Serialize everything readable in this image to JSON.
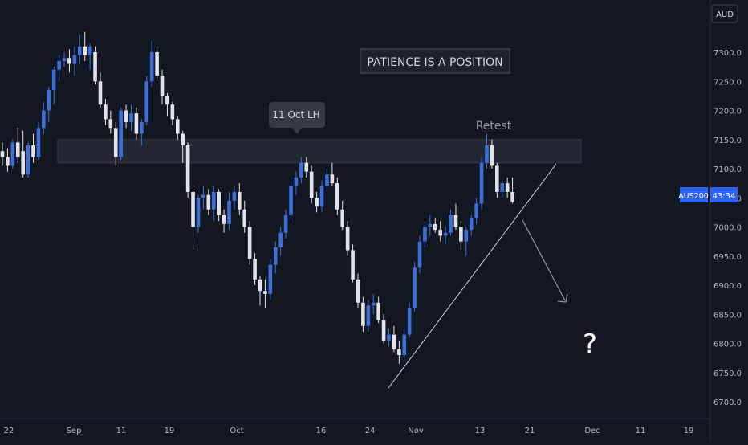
{
  "chart_data": {
    "type": "candlestick",
    "symbol": "AUS200",
    "countdown": "43:34",
    "currency": "AUD",
    "title_box": "PATIENCE IS A POSITION",
    "callout": "11 Oct LH",
    "retest_label": "Retest",
    "question_mark": "?",
    "last_price": 7043,
    "resistance_zone": [
      7110,
      7150
    ],
    "ylim": [
      6680,
      7345
    ],
    "y_ticks": [
      "7300.0",
      "7250.0",
      "7200.0",
      "7150.0",
      "7100.0",
      "7050.0",
      "7000.0",
      "6950.0",
      "6900.0",
      "6850.0",
      "6800.0",
      "6750.0",
      "6700.0"
    ],
    "y_tick_values": [
      7300,
      7250,
      7200,
      7150,
      7100,
      7050,
      7000,
      6950,
      6900,
      6850,
      6800,
      6750,
      6700
    ],
    "x_ticks": [
      "22",
      "Sep",
      "11",
      "19",
      "Oct",
      "16",
      "24",
      "Nov",
      "13",
      "21",
      "Dec",
      "11",
      "19"
    ],
    "candles": [
      [
        7130,
        7145,
        7105,
        7120
      ],
      [
        7120,
        7135,
        7095,
        7105
      ],
      [
        7105,
        7150,
        7100,
        7145
      ],
      [
        7145,
        7170,
        7110,
        7120
      ],
      [
        7130,
        7165,
        7085,
        7090
      ],
      [
        7090,
        7145,
        7085,
        7140
      ],
      [
        7140,
        7160,
        7110,
        7120
      ],
      [
        7120,
        7180,
        7115,
        7170
      ],
      [
        7170,
        7215,
        7160,
        7200
      ],
      [
        7200,
        7240,
        7180,
        7235
      ],
      [
        7235,
        7275,
        7210,
        7270
      ],
      [
        7270,
        7295,
        7250,
        7285
      ],
      [
        7285,
        7300,
        7275,
        7290
      ],
      [
        7290,
        7305,
        7265,
        7280
      ],
      [
        7280,
        7310,
        7260,
        7295
      ],
      [
        7295,
        7330,
        7280,
        7310
      ],
      [
        7310,
        7335,
        7285,
        7295
      ],
      [
        7295,
        7315,
        7270,
        7310
      ],
      [
        7300,
        7310,
        7245,
        7250
      ],
      [
        7250,
        7265,
        7205,
        7210
      ],
      [
        7210,
        7220,
        7175,
        7185
      ],
      [
        7185,
        7200,
        7160,
        7170
      ],
      [
        7170,
        7180,
        7105,
        7120
      ],
      [
        7120,
        7205,
        7115,
        7200
      ],
      [
        7200,
        7210,
        7170,
        7180
      ],
      [
        7180,
        7210,
        7165,
        7195
      ],
      [
        7195,
        7205,
        7150,
        7160
      ],
      [
        7160,
        7185,
        7140,
        7180
      ],
      [
        7180,
        7260,
        7175,
        7250
      ],
      [
        7250,
        7320,
        7240,
        7300
      ],
      [
        7300,
        7310,
        7250,
        7260
      ],
      [
        7260,
        7270,
        7210,
        7225
      ],
      [
        7225,
        7230,
        7190,
        7210
      ],
      [
        7210,
        7215,
        7175,
        7185
      ],
      [
        7185,
        7190,
        7150,
        7160
      ],
      [
        7160,
        7165,
        7110,
        7140
      ],
      [
        7140,
        7145,
        7050,
        7060
      ],
      [
        7060,
        7070,
        6960,
        7000
      ],
      [
        7000,
        7055,
        6990,
        7050
      ],
      [
        7050,
        7070,
        7030,
        7055
      ],
      [
        7055,
        7065,
        7020,
        7030
      ],
      [
        7030,
        7070,
        7010,
        7060
      ],
      [
        7060,
        7065,
        7010,
        7020
      ],
      [
        7020,
        7030,
        6990,
        7005
      ],
      [
        7005,
        7060,
        6995,
        7045
      ],
      [
        7045,
        7070,
        7030,
        7060
      ],
      [
        7060,
        7075,
        7020,
        7030
      ],
      [
        7030,
        7045,
        6990,
        7000
      ],
      [
        7000,
        7010,
        6935,
        6945
      ],
      [
        6945,
        6955,
        6900,
        6910
      ],
      [
        6910,
        6915,
        6865,
        6890
      ],
      [
        6890,
        6910,
        6860,
        6885
      ],
      [
        6885,
        6945,
        6875,
        6935
      ],
      [
        6935,
        6975,
        6920,
        6965
      ],
      [
        6965,
        7000,
        6950,
        6990
      ],
      [
        6990,
        7030,
        6980,
        7020
      ],
      [
        7020,
        7080,
        7010,
        7070
      ],
      [
        7070,
        7095,
        7055,
        7085
      ],
      [
        7085,
        7120,
        7075,
        7110
      ],
      [
        7110,
        7120,
        7085,
        7095
      ],
      [
        7095,
        7105,
        7040,
        7050
      ],
      [
        7050,
        7060,
        7025,
        7035
      ],
      [
        7035,
        7080,
        7025,
        7070
      ],
      [
        7070,
        7100,
        7060,
        7090
      ],
      [
        7090,
        7110,
        7070,
        7075
      ],
      [
        7075,
        7085,
        7020,
        7030
      ],
      [
        7030,
        7045,
        6995,
        7000
      ],
      [
        7000,
        7010,
        6950,
        6960
      ],
      [
        6960,
        6970,
        6905,
        6910
      ],
      [
        6910,
        6920,
        6860,
        6870
      ],
      [
        6870,
        6880,
        6820,
        6830
      ],
      [
        6830,
        6875,
        6820,
        6865
      ],
      [
        6865,
        6885,
        6850,
        6870
      ],
      [
        6870,
        6880,
        6835,
        6840
      ],
      [
        6840,
        6850,
        6800,
        6805
      ],
      [
        6805,
        6825,
        6795,
        6815
      ],
      [
        6815,
        6830,
        6785,
        6790
      ],
      [
        6790,
        6805,
        6765,
        6780
      ],
      [
        6780,
        6825,
        6770,
        6815
      ],
      [
        6815,
        6870,
        6810,
        6860
      ],
      [
        6860,
        6940,
        6855,
        6930
      ],
      [
        6930,
        6985,
        6920,
        6975
      ],
      [
        6975,
        7010,
        6965,
        7000
      ],
      [
        7000,
        7020,
        6985,
        7005
      ],
      [
        7005,
        7015,
        6990,
        6995
      ],
      [
        6995,
        7010,
        6975,
        6985
      ],
      [
        6985,
        7000,
        6970,
        6990
      ],
      [
        6990,
        7030,
        6985,
        7020
      ],
      [
        7020,
        7040,
        6995,
        7000
      ],
      [
        7000,
        7010,
        6960,
        6975
      ],
      [
        6975,
        7000,
        6950,
        6995
      ],
      [
        6995,
        7020,
        6985,
        7015
      ],
      [
        7015,
        7050,
        7005,
        7040
      ],
      [
        7040,
        7120,
        7030,
        7110
      ],
      [
        7110,
        7160,
        7100,
        7140
      ],
      [
        7140,
        7150,
        7100,
        7105
      ],
      [
        7105,
        7110,
        7050,
        7060
      ],
      [
        7060,
        7080,
        7050,
        7075
      ],
      [
        7075,
        7085,
        7050,
        7060
      ],
      [
        7060,
        7085,
        7040,
        7043
      ]
    ]
  }
}
